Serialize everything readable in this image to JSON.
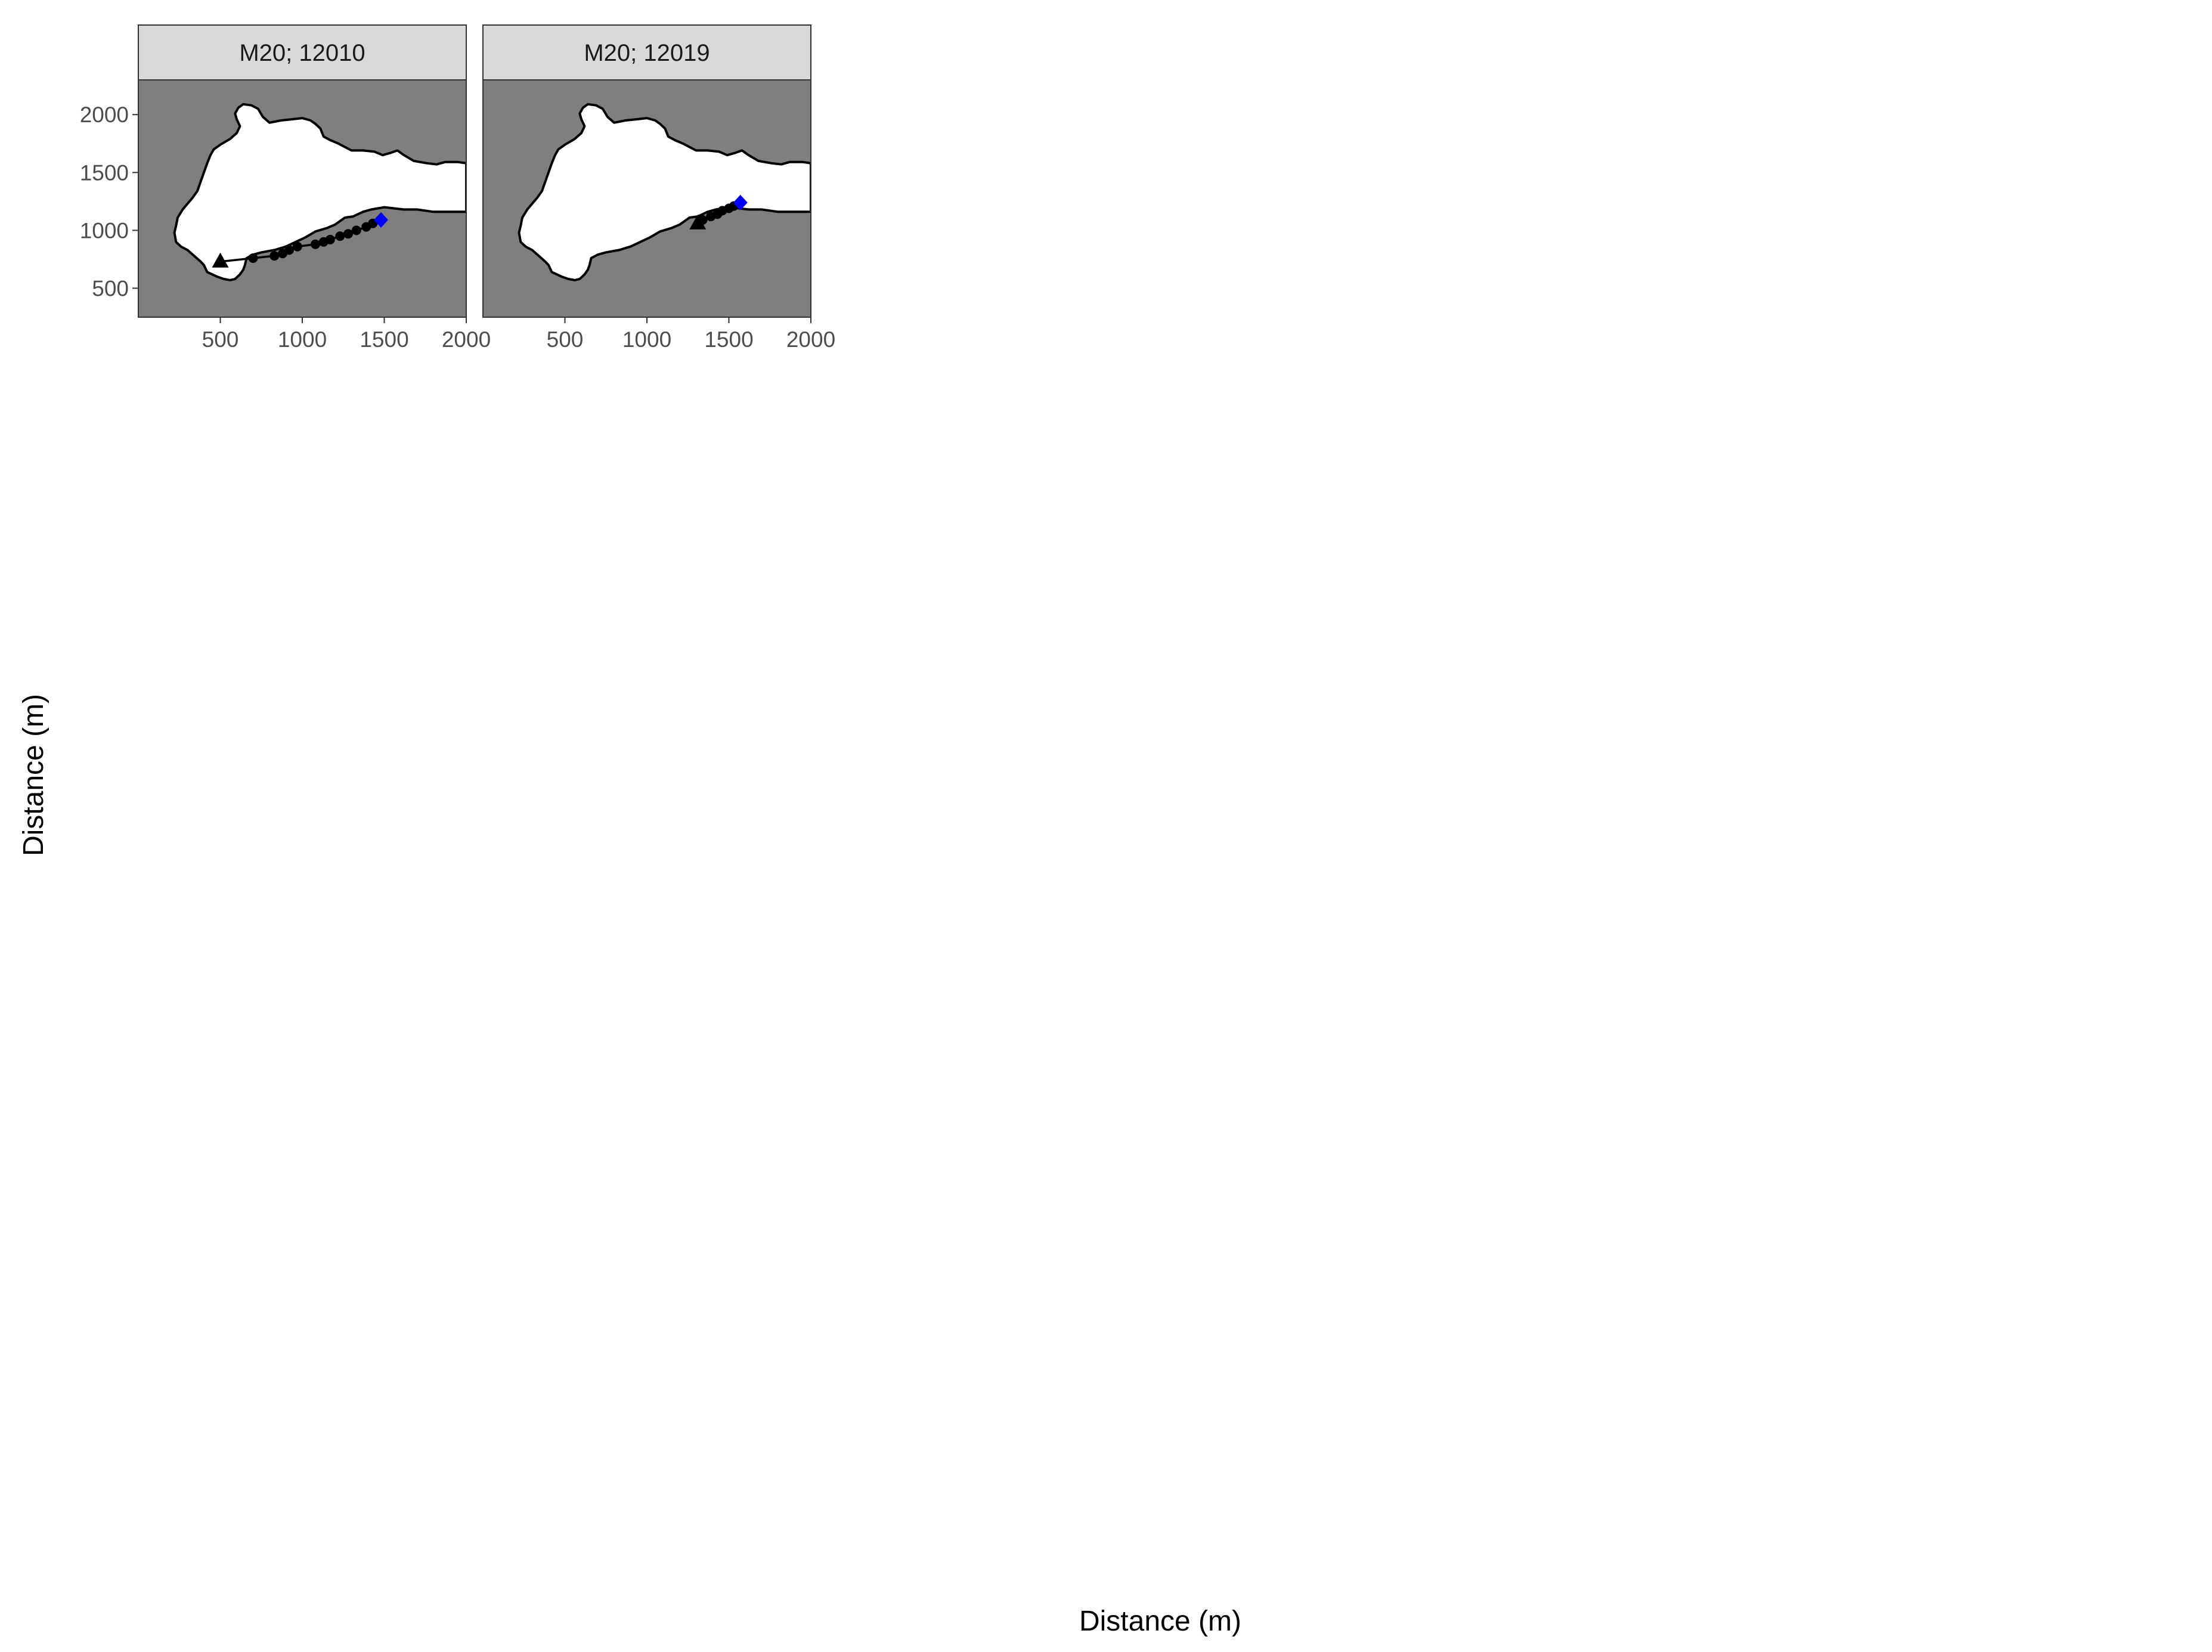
{
  "chart_data": {
    "type": "scatter",
    "xlabel": "Distance (m)",
    "ylabel": "Distance (m)",
    "xlim": [
      0,
      2000
    ],
    "ylim": [
      250,
      2300
    ],
    "x_ticks": [
      500,
      1000,
      1500,
      2000
    ],
    "y_ticks": [
      500,
      1000,
      1500,
      2000
    ],
    "x_tick_labels": [
      "500",
      "1000",
      "1500",
      "2000"
    ],
    "y_tick_labels": [
      "500",
      "1000",
      "1500",
      "2000"
    ],
    "colors": {
      "background": "#7f7f7f",
      "land": "#ffffff",
      "strip": "#d9d9d9",
      "track": "#000000",
      "point": "#000000",
      "end_marker": "#0000ff",
      "label": "#ff0000"
    },
    "markers": {
      "start": "triangle",
      "relocation": "circle",
      "end": "diamond"
    },
    "coastline": [
      [
        300,
        830
      ],
      [
        380,
        730
      ],
      [
        400,
        700
      ],
      [
        420,
        640
      ],
      [
        450,
        620
      ],
      [
        480,
        600
      ],
      [
        520,
        580
      ],
      [
        560,
        570
      ],
      [
        590,
        580
      ],
      [
        620,
        620
      ],
      [
        640,
        660
      ],
      [
        650,
        700
      ],
      [
        660,
        760
      ],
      [
        700,
        790
      ],
      [
        750,
        810
      ],
      [
        830,
        830
      ],
      [
        900,
        860
      ],
      [
        960,
        900
      ],
      [
        1020,
        940
      ],
      [
        1080,
        990
      ],
      [
        1150,
        1020
      ],
      [
        1200,
        1050
      ],
      [
        1260,
        1110
      ],
      [
        1310,
        1120
      ],
      [
        1370,
        1160
      ],
      [
        1420,
        1180
      ],
      [
        1500,
        1200
      ],
      [
        1560,
        1190
      ],
      [
        1620,
        1180
      ],
      [
        1700,
        1180
      ],
      [
        1800,
        1160
      ],
      [
        1900,
        1160
      ],
      [
        2000,
        1160
      ],
      [
        2000,
        1580
      ],
      [
        1950,
        1590
      ],
      [
        1870,
        1590
      ],
      [
        1820,
        1570
      ],
      [
        1760,
        1580
      ],
      [
        1680,
        1600
      ],
      [
        1620,
        1650
      ],
      [
        1580,
        1690
      ],
      [
        1540,
        1670
      ],
      [
        1490,
        1650
      ],
      [
        1440,
        1680
      ],
      [
        1370,
        1690
      ],
      [
        1300,
        1690
      ],
      [
        1260,
        1720
      ],
      [
        1220,
        1750
      ],
      [
        1170,
        1780
      ],
      [
        1130,
        1810
      ],
      [
        1110,
        1880
      ],
      [
        1080,
        1920
      ],
      [
        1050,
        1950
      ],
      [
        1000,
        1970
      ],
      [
        940,
        1960
      ],
      [
        870,
        1950
      ],
      [
        800,
        1930
      ],
      [
        760,
        1980
      ],
      [
        730,
        2050
      ],
      [
        690,
        2080
      ],
      [
        640,
        2090
      ],
      [
        610,
        2060
      ],
      [
        590,
        2010
      ],
      [
        600,
        1960
      ],
      [
        620,
        1900
      ],
      [
        600,
        1840
      ],
      [
        560,
        1790
      ],
      [
        500,
        1740
      ],
      [
        460,
        1700
      ],
      [
        440,
        1650
      ],
      [
        420,
        1580
      ],
      [
        400,
        1500
      ],
      [
        380,
        1420
      ],
      [
        360,
        1340
      ],
      [
        330,
        1280
      ],
      [
        300,
        1230
      ],
      [
        270,
        1180
      ],
      [
        240,
        1110
      ],
      [
        230,
        1040
      ],
      [
        220,
        980
      ],
      [
        230,
        900
      ],
      [
        260,
        860
      ]
    ],
    "series": [
      {
        "name": "M20; 12010",
        "x": [
          500,
          700,
          830,
          880,
          920,
          970,
          1080,
          1130,
          1170,
          1230,
          1280,
          1330,
          1390,
          1430,
          1480
        ],
        "y": [
          730,
          760,
          780,
          800,
          830,
          860,
          880,
          900,
          920,
          950,
          970,
          1000,
          1030,
          1060,
          1090
        ]
      },
      {
        "name": "M20; 12019",
        "x": [
          1310,
          1340,
          1390,
          1430,
          1460,
          1500,
          1530,
          1570
        ],
        "y": [
          1060,
          1090,
          1120,
          1140,
          1170,
          1190,
          1210,
          1240
        ]
      }
    ]
  }
}
